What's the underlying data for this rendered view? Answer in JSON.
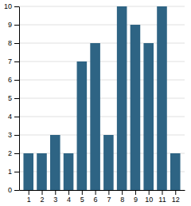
{
  "chart_data": {
    "type": "bar",
    "x": [
      1,
      2,
      3,
      4,
      5,
      6,
      7,
      8,
      9,
      10,
      11,
      12
    ],
    "values": [
      2,
      2,
      3,
      2,
      7,
      8,
      3,
      10,
      9,
      8,
      10,
      2
    ],
    "color": "#2e6484",
    "xlim": [
      0.3,
      12.7
    ],
    "xticks": [
      1,
      2,
      3,
      4,
      5,
      6,
      7,
      8,
      9,
      10,
      11,
      12
    ],
    "ylim": [
      0,
      10
    ],
    "yticks": [
      0,
      1,
      2,
      3,
      4,
      5,
      6,
      7,
      8,
      9,
      10
    ],
    "grid": "y"
  }
}
